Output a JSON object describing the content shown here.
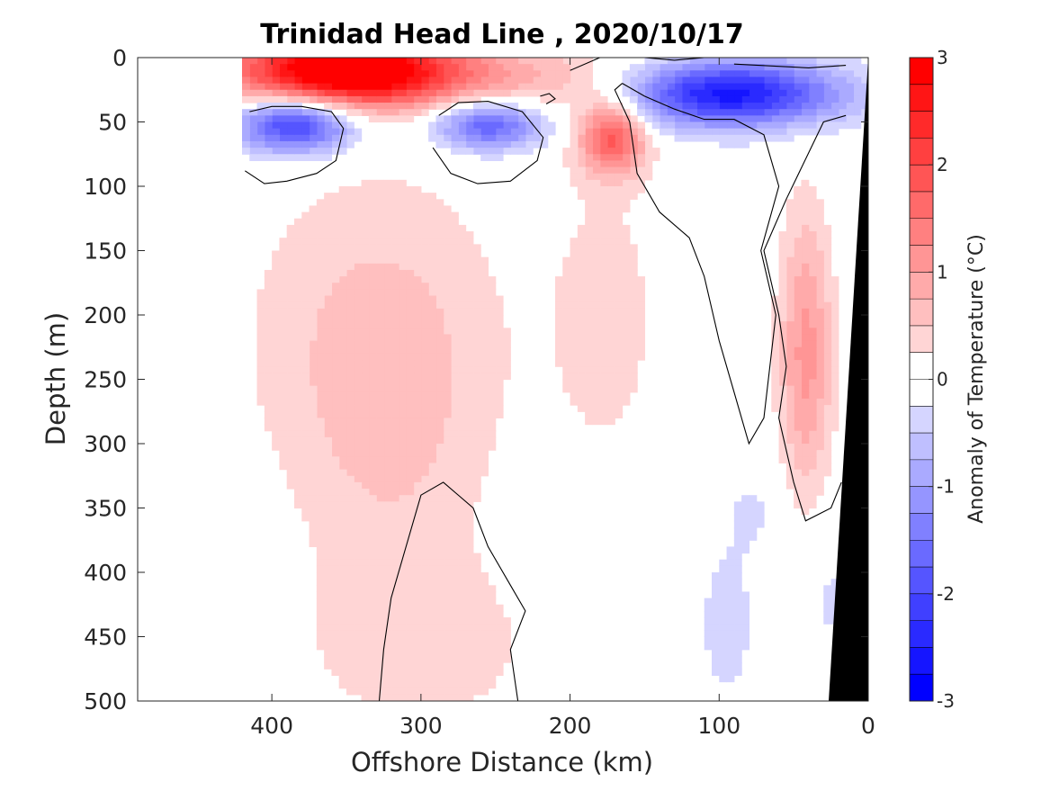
{
  "chart_data": {
    "type": "heatmap",
    "title": "Trinidad Head Line , 2020/10/17",
    "xlabel": "Offshore Distance (km)",
    "ylabel": "Depth (m)",
    "xlim": [
      490,
      0
    ],
    "ylim": [
      0,
      500
    ],
    "x_reversed": true,
    "y_reversed": true,
    "x_ticks": [
      "400",
      "300",
      "200",
      "100",
      "0"
    ],
    "y_ticks": [
      "0",
      "50",
      "100",
      "150",
      "200",
      "250",
      "300",
      "350",
      "400",
      "450",
      "500"
    ],
    "colorbar": {
      "label": "Anomaly of Temperature (°C)",
      "range": [
        -3,
        3
      ],
      "step": 0.25,
      "ticks": [
        "3",
        "2",
        "1",
        "0",
        "-1",
        "-2",
        "-3"
      ]
    },
    "data_extent_km": 420,
    "anomaly_features": [
      {
        "name": "surface warm core",
        "x_km": [
          420,
          290
        ],
        "depth_m": [
          0,
          40
        ],
        "anomaly_c": 3.0
      },
      {
        "name": "cold lens offshore",
        "x_km": [
          415,
          355
        ],
        "depth_m": [
          35,
          90
        ],
        "anomaly_c": -1.5
      },
      {
        "name": "cold lens mid",
        "x_km": [
          290,
          220
        ],
        "depth_m": [
          40,
          85
        ],
        "anomaly_c": -1.25
      },
      {
        "name": "warm patch",
        "x_km": [
          200,
          150
        ],
        "depth_m": [
          40,
          90
        ],
        "anomaly_c": 1.75
      },
      {
        "name": "nearshore cold core",
        "x_km": [
          165,
          15
        ],
        "depth_m": [
          0,
          60
        ],
        "anomaly_c": -2.0
      },
      {
        "name": "nearshore warm band",
        "x_km": [
          60,
          15
        ],
        "depth_m": [
          60,
          320
        ],
        "anomaly_c": 1.0
      },
      {
        "name": "offshore warm column",
        "x_km": [
          380,
          220
        ],
        "depth_m": [
          100,
          500
        ],
        "anomaly_c": 0.5
      },
      {
        "name": "deep weak cold",
        "x_km": [
          110,
          70
        ],
        "depth_m": [
          380,
          500
        ],
        "anomaly_c": -0.25
      }
    ],
    "grid": false,
    "legend": "colorbar-right"
  }
}
